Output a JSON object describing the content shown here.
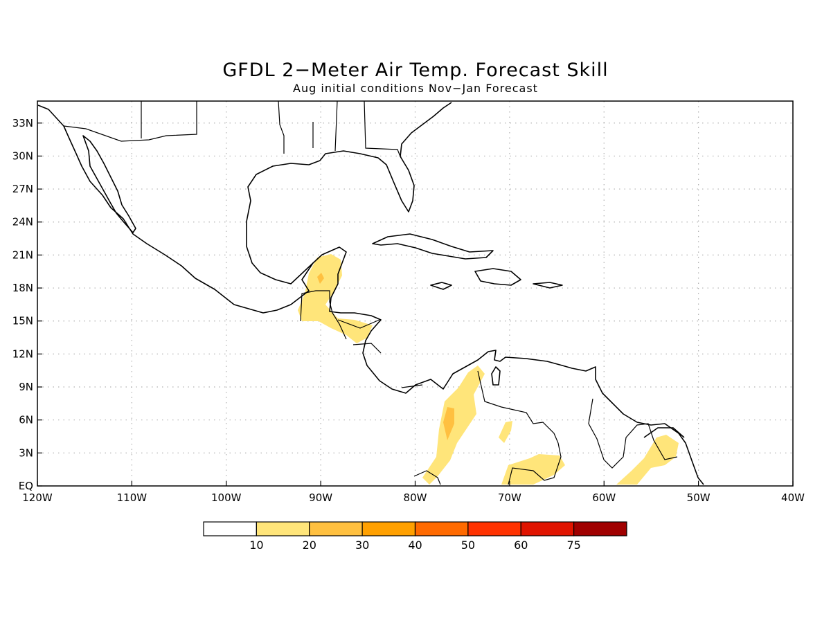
{
  "title": "GFDL 2−Meter Air Temp. Forecast Skill",
  "subtitle": "Aug initial conditions  Nov−Jan Forecast",
  "map": {
    "lon_range": [
      -120,
      -40
    ],
    "lat_range": [
      0,
      35
    ],
    "gridlines": true,
    "x_ticks": [
      "120W",
      "110W",
      "100W",
      "90W",
      "80W",
      "70W",
      "60W",
      "50W",
      "40W"
    ],
    "y_ticks": [
      "33N",
      "30N",
      "27N",
      "24N",
      "21N",
      "18N",
      "15N",
      "12N",
      "9N",
      "6N",
      "3N",
      "EQ"
    ]
  },
  "legend": {
    "labels": [
      "10",
      "20",
      "30",
      "40",
      "50",
      "60",
      "75"
    ],
    "colors": [
      "#ffffff",
      "#ffe57a",
      "#ffc040",
      "#ffa000",
      "#ff6a00",
      "#ff3200",
      "#e01400",
      "#a00000"
    ]
  }
}
